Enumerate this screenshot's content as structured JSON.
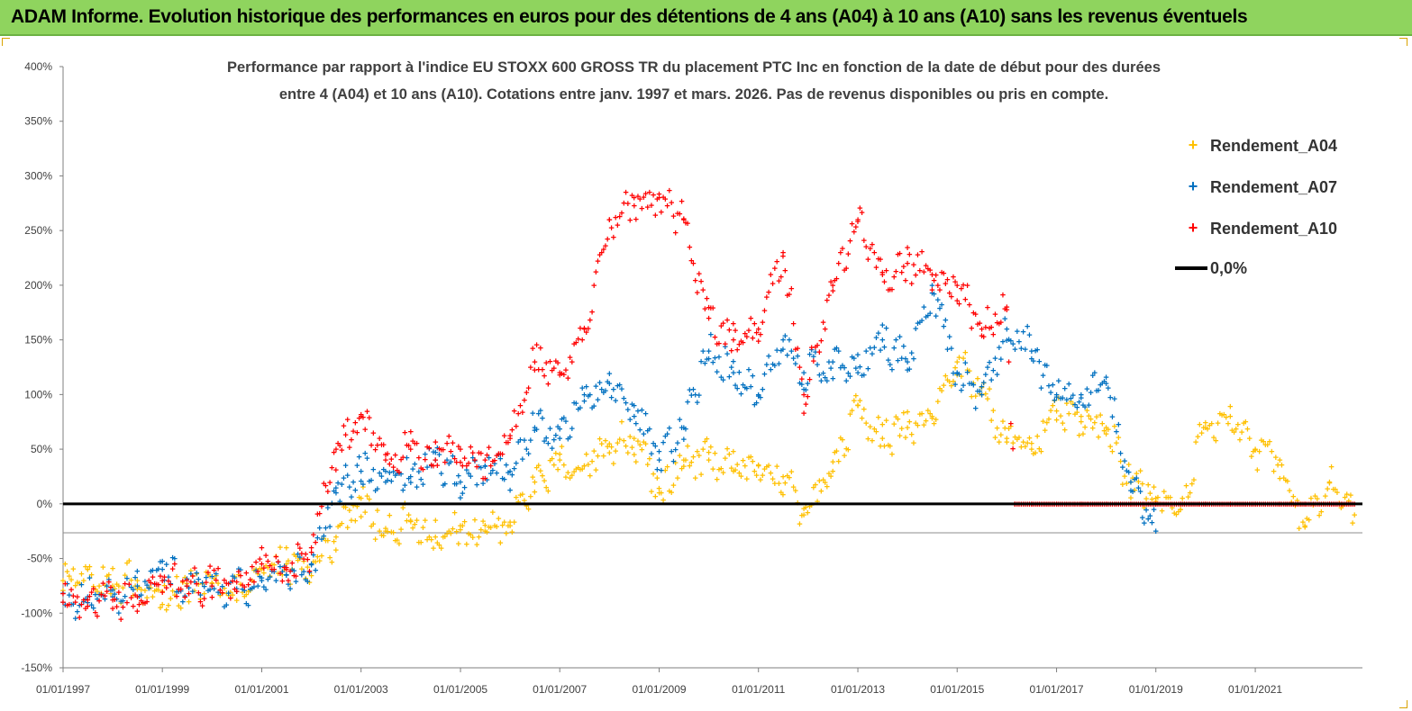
{
  "banner": {
    "title": "ADAM Informe. Evolution historique des performances en euros pour des détentions de 4 ans (A04) à 10 ans (A10) sans les revenus éventuels",
    "background": "#8fd45e"
  },
  "chart_data": {
    "type": "scatter",
    "title_lines": [
      "Performance par rapport à l'indice EU STOXX 600 GROSS TR  du placement PTC Inc en fonction de la date de début pour des durées",
      "entre 4 (A04) et 10 ans (A10). Cotations entre janv. 1997 et mars. 2026. Pas de revenus disponibles ou pris en compte."
    ],
    "xlabel": "",
    "ylabel": "",
    "y_unit": "%",
    "ylim": [
      -150,
      400
    ],
    "y_ticks": [
      -150,
      -100,
      -50,
      0,
      50,
      100,
      150,
      200,
      250,
      300,
      350,
      400
    ],
    "y_tick_labels": [
      "-150%",
      "-100%",
      "-50%",
      "0%",
      "50%",
      "100%",
      "150%",
      "200%",
      "250%",
      "300%",
      "350%",
      "400%"
    ],
    "x_range": [
      "1997-01-01",
      "2023-02-28"
    ],
    "x_ticks": [
      "1997-01-01",
      "1999-01-01",
      "2001-01-01",
      "2003-01-01",
      "2005-01-01",
      "2007-01-01",
      "2009-01-01",
      "2011-01-01",
      "2013-01-01",
      "2015-01-01",
      "2017-01-01",
      "2019-01-01",
      "2021-01-01"
    ],
    "x_tick_labels": [
      "01/01/1997",
      "01/01/1999",
      "01/01/2001",
      "01/01/2003",
      "01/01/2005",
      "01/01/2007",
      "01/01/2009",
      "01/01/2011",
      "01/01/2013",
      "01/01/2015",
      "01/01/2017",
      "01/01/2019",
      "01/01/2021"
    ],
    "grid": "horizontal reference line at -25% only",
    "legend_position": "top-right",
    "series": [
      {
        "name": "Rendement_A04",
        "color": "#ffc000",
        "marker": "plus",
        "x": [
          "1997-01",
          "1997-07",
          "1998-01",
          "1998-07",
          "1999-01",
          "1999-07",
          "2000-01",
          "2000-07",
          "2001-01",
          "2001-07",
          "2002-01",
          "2002-07",
          "2003-01",
          "2003-07",
          "2004-01",
          "2004-07",
          "2005-01",
          "2005-07",
          "2006-01",
          "2006-07",
          "2007-01",
          "2007-07",
          "2008-01",
          "2008-07",
          "2009-01",
          "2009-07",
          "2010-01",
          "2010-07",
          "2011-01",
          "2011-07",
          "2011-12",
          "2012-07",
          "2013-01",
          "2013-07",
          "2014-01",
          "2014-07",
          "2015-01",
          "2015-07",
          "2016-01",
          "2016-07",
          "2017-01",
          "2017-07",
          "2018-01",
          "2018-07",
          "2019-01",
          "2019-07",
          "2020-01",
          "2020-07",
          "2021-01",
          "2021-07",
          "2022-01",
          "2022-07",
          "2023-01"
        ],
        "y": [
          -70,
          -60,
          -75,
          -70,
          -80,
          -75,
          -72,
          -80,
          -60,
          -55,
          -55,
          -30,
          5,
          -25,
          -15,
          -30,
          -20,
          -25,
          -20,
          20,
          40,
          35,
          55,
          60,
          10,
          40,
          40,
          30,
          35,
          25,
          -10,
          30,
          90,
          60,
          70,
          80,
          130,
          100,
          60,
          50,
          85,
          80,
          70,
          20,
          5,
          -5,
          70,
          80,
          50,
          40,
          -20,
          20,
          -10
        ]
      },
      {
        "name": "Rendement_A07",
        "color": "#0070c0",
        "marker": "plus",
        "x": [
          "1997-01",
          "1997-07",
          "1998-01",
          "1998-07",
          "1999-01",
          "1999-07",
          "2000-01",
          "2000-07",
          "2001-01",
          "2001-07",
          "2002-01",
          "2002-07",
          "2003-01",
          "2003-07",
          "2004-01",
          "2004-07",
          "2005-01",
          "2005-07",
          "2006-01",
          "2006-07",
          "2007-01",
          "2007-07",
          "2008-01",
          "2008-07",
          "2009-01",
          "2009-07",
          "2010-01",
          "2010-07",
          "2011-01",
          "2011-07",
          "2011-12",
          "2012-07",
          "2013-01",
          "2013-07",
          "2014-01",
          "2014-07",
          "2015-01",
          "2015-07",
          "2016-01",
          "2016-07",
          "2017-01",
          "2017-07",
          "2018-01",
          "2018-07",
          "2019-01"
        ],
        "y": [
          -90,
          -85,
          -85,
          -75,
          -60,
          -75,
          -75,
          -80,
          -70,
          -65,
          -55,
          10,
          30,
          20,
          25,
          40,
          20,
          35,
          30,
          70,
          60,
          100,
          110,
          90,
          40,
          70,
          140,
          120,
          100,
          150,
          120,
          130,
          120,
          150,
          130,
          200,
          120,
          100,
          160,
          140,
          100,
          100,
          110,
          20,
          -25
        ]
      },
      {
        "name": "Rendement_A10",
        "color": "#ff0000",
        "marker": "plus",
        "x": [
          "1997-01",
          "1997-07",
          "1998-01",
          "1998-07",
          "1999-01",
          "1999-07",
          "2000-01",
          "2000-07",
          "2001-01",
          "2001-07",
          "2002-01",
          "2002-07",
          "2003-01",
          "2003-07",
          "2004-01",
          "2004-07",
          "2005-01",
          "2005-07",
          "2006-01",
          "2006-07",
          "2007-01",
          "2007-07",
          "2008-01",
          "2008-07",
          "2009-01",
          "2009-07",
          "2010-01",
          "2010-07",
          "2011-01",
          "2011-07",
          "2011-12",
          "2012-07",
          "2013-01",
          "2013-07",
          "2014-01",
          "2014-07",
          "2015-01",
          "2015-07",
          "2016-01",
          "2016-03",
          "2016-07",
          "2017-01",
          "2017-07",
          "2018-01",
          "2018-07",
          "2019-01",
          "2019-07",
          "2020-01",
          "2020-07",
          "2021-01",
          "2021-07",
          "2022-01",
          "2022-07",
          "2023-01"
        ],
        "y": [
          -90,
          -88,
          -88,
          -85,
          -70,
          -75,
          -75,
          -80,
          -55,
          -60,
          -40,
          50,
          80,
          40,
          50,
          40,
          50,
          40,
          60,
          130,
          120,
          160,
          260,
          280,
          280,
          260,
          170,
          150,
          160,
          230,
          100,
          200,
          260,
          210,
          220,
          210,
          200,
          160,
          180,
          0,
          0,
          0,
          0,
          0,
          0,
          0,
          0,
          0,
          0,
          0,
          0,
          0,
          0,
          0
        ]
      },
      {
        "name": "0,0%",
        "color": "#000000",
        "marker": "line",
        "x": [
          "1997-01-01",
          "2023-02-28"
        ],
        "y": [
          0,
          0
        ]
      }
    ]
  }
}
